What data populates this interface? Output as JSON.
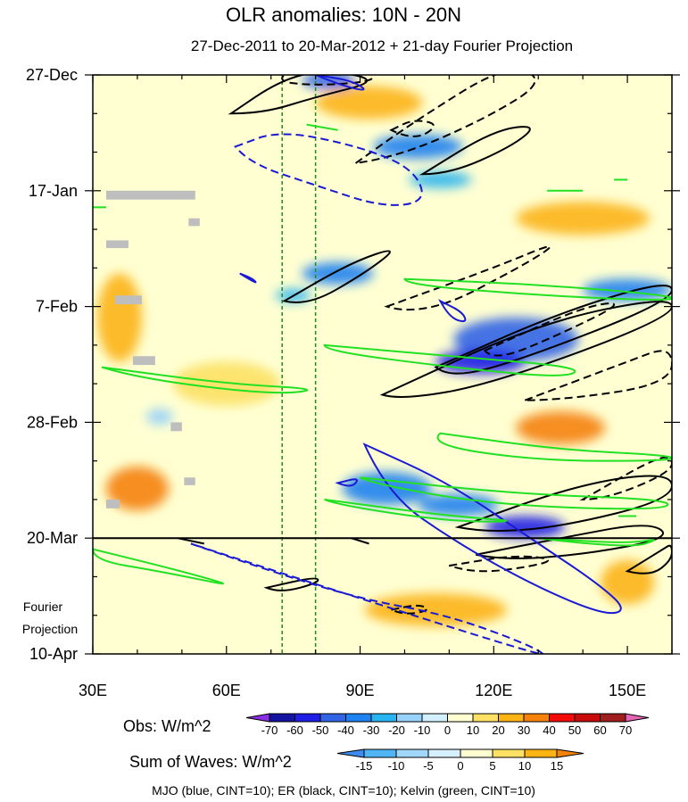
{
  "chart_data": {
    "type": "heatmap",
    "title": "OLR anomalies: 10N - 20N",
    "subtitle": "27-Dec-2011 to 20-Mar-2012 + 21-day Fourier Projection",
    "x_axis": {
      "range": [
        30,
        160
      ],
      "ticks": [
        {
          "value": 30,
          "label": "30E"
        },
        {
          "value": 60,
          "label": "60E"
        },
        {
          "value": 90,
          "label": "90E"
        },
        {
          "value": 120,
          "label": "120E"
        },
        {
          "value": 150,
          "label": "150E"
        }
      ]
    },
    "y_axis": {
      "range_days": [
        0,
        105
      ],
      "ticks": [
        {
          "day": 0,
          "label": "27-Dec"
        },
        {
          "day": 21,
          "label": "17-Jan"
        },
        {
          "day": 42,
          "label": "7-Feb"
        },
        {
          "day": 63,
          "label": "28-Feb"
        },
        {
          "day": 84,
          "label": "20-Mar"
        },
        {
          "day": 105,
          "label": "10-Apr"
        }
      ],
      "projection_start_day": 84,
      "projection_label_line1": "Fourier",
      "projection_label_line2": "Projection"
    },
    "reference_longitudes": [
      72.5,
      80
    ],
    "obs_colorbar": {
      "label": "Obs: W/m^2",
      "levels": [
        "-70",
        "-60",
        "-50",
        "-40",
        "-30",
        "-20",
        "-10",
        "0",
        "10",
        "20",
        "30",
        "40",
        "50",
        "60",
        "70"
      ],
      "colors": [
        "#8c2ee6",
        "#1414a0",
        "#1e1ee6",
        "#3264e6",
        "#1e82f0",
        "#28b4f0",
        "#96d2fa",
        "#d2f0ff",
        "#ffffd2",
        "#fce164",
        "#fcb414",
        "#f5820a",
        "#f50a0a",
        "#c80a0a",
        "#a01e1e",
        "#e664b4"
      ]
    },
    "waves_colorbar": {
      "label": "Sum of Waves: W/m^2",
      "levels": [
        "-15",
        "-10",
        "-5",
        "0",
        "5",
        "10",
        "15"
      ],
      "colors": [
        "#3c8cf0",
        "#50b4f5",
        "#a0d7fa",
        "#d7f0ff",
        "#ffffd2",
        "#fce164",
        "#fcb414",
        "#f5820a"
      ]
    },
    "legend_text": "MJO (blue, CINT=10); ER (black, CINT=10); Kelvin (green, CINT=10)",
    "observed_anomaly_regions": [
      {
        "lon": 83,
        "day": 1,
        "rx": 6,
        "ry": 1.6,
        "value": -50
      },
      {
        "lon": 103,
        "day": 13,
        "rx": 10,
        "ry": 2.2,
        "value": -40
      },
      {
        "lon": 108,
        "day": 19,
        "rx": 7,
        "ry": 1.5,
        "value": -30
      },
      {
        "lon": 85,
        "day": 36,
        "rx": 8,
        "ry": 2,
        "value": -40
      },
      {
        "lon": 75,
        "day": 40,
        "rx": 4,
        "ry": 1.2,
        "value": -30
      },
      {
        "lon": 150,
        "day": 39,
        "rx": 10,
        "ry": 2,
        "value": -40
      },
      {
        "lon": 125,
        "day": 48,
        "rx": 14,
        "ry": 4,
        "value": -50
      },
      {
        "lon": 117,
        "day": 52,
        "rx": 10,
        "ry": 2.2,
        "value": -60
      },
      {
        "lon": 96,
        "day": 75,
        "rx": 10,
        "ry": 3,
        "value": -40
      },
      {
        "lon": 127,
        "day": 82,
        "rx": 9,
        "ry": 2,
        "value": -60
      },
      {
        "lon": 112,
        "day": 78,
        "rx": 9,
        "ry": 2,
        "value": -40
      },
      {
        "lon": 45,
        "day": 62,
        "rx": 3,
        "ry": 1.5,
        "value": -20
      },
      {
        "lon": 107,
        "day": 97,
        "rx": 16,
        "ry": 3,
        "value": 20
      },
      {
        "lon": 40,
        "day": 75,
        "rx": 7,
        "ry": 4,
        "value": 30
      },
      {
        "lon": 36,
        "day": 44,
        "rx": 5,
        "ry": 8,
        "value": 20
      },
      {
        "lon": 60,
        "day": 56,
        "rx": 12,
        "ry": 4,
        "value": 10
      },
      {
        "lon": 92,
        "day": 5,
        "rx": 12,
        "ry": 3,
        "value": 20
      },
      {
        "lon": 135,
        "day": 64,
        "rx": 10,
        "ry": 3,
        "value": 30
      },
      {
        "lon": 140,
        "day": 26,
        "rx": 15,
        "ry": 3,
        "value": 20
      },
      {
        "lon": 150,
        "day": 92,
        "rx": 6,
        "ry": 4,
        "value": 20
      }
    ],
    "missing_data_cells": [
      {
        "lon": 33,
        "day": 21,
        "w": 20,
        "h": 1.6
      },
      {
        "lon": 51.5,
        "day": 26,
        "w": 2.5,
        "h": 1.4
      },
      {
        "lon": 33,
        "day": 30,
        "w": 5,
        "h": 1.4
      },
      {
        "lon": 35,
        "day": 40,
        "w": 6,
        "h": 1.6
      },
      {
        "lon": 39,
        "day": 51,
        "w": 5,
        "h": 1.6
      },
      {
        "lon": 47.5,
        "day": 63,
        "w": 2.5,
        "h": 1.6
      },
      {
        "lon": 50.5,
        "day": 73,
        "w": 2.5,
        "h": 1.4
      },
      {
        "lon": 33,
        "day": 77,
        "w": 3,
        "h": 1.6
      }
    ],
    "wave_contours": [
      {
        "wave": "ER",
        "sign": "positive",
        "points": [
          [
            61,
            7
          ],
          [
            72,
            1
          ],
          [
            82,
            -1
          ],
          [
            95,
            1
          ],
          [
            80,
            4
          ],
          [
            68,
            7
          ]
        ]
      },
      {
        "wave": "ER",
        "sign": "negative",
        "points": [
          [
            75,
            -1
          ],
          [
            90,
            -2
          ],
          [
            95,
            1
          ],
          [
            80,
            2
          ],
          [
            70,
            1
          ]
        ]
      },
      {
        "wave": "ER",
        "sign": "negative",
        "points": [
          [
            89,
            16
          ],
          [
            103,
            8
          ],
          [
            123,
            -2
          ],
          [
            132,
            1
          ],
          [
            118,
            8
          ],
          [
            98,
            15
          ]
        ]
      },
      {
        "wave": "ER",
        "sign": "negative",
        "points": [
          [
            97,
            10
          ],
          [
            102,
            8
          ],
          [
            108,
            9
          ],
          [
            102,
            12
          ]
        ]
      },
      {
        "wave": "ER",
        "sign": "positive",
        "points": [
          [
            104,
            18
          ],
          [
            120,
            10
          ],
          [
            130,
            9
          ],
          [
            124,
            13
          ],
          [
            110,
            18
          ]
        ]
      },
      {
        "wave": "ER",
        "sign": "positive",
        "points": [
          [
            73,
            41
          ],
          [
            88,
            34
          ],
          [
            99,
            31
          ],
          [
            91,
            36
          ],
          [
            78,
            42
          ]
        ]
      },
      {
        "wave": "ER",
        "sign": "negative",
        "points": [
          [
            96,
            42
          ],
          [
            120,
            35
          ],
          [
            135,
            30
          ],
          [
            128,
            34
          ],
          [
            104,
            44
          ]
        ]
      },
      {
        "wave": "ER",
        "sign": "positive",
        "points": [
          [
            107,
            53
          ],
          [
            135,
            43
          ],
          [
            160,
            37
          ],
          [
            160,
            41
          ],
          [
            125,
            52
          ],
          [
            110,
            55
          ]
        ]
      },
      {
        "wave": "ER",
        "sign": "positive",
        "points": [
          [
            95,
            58
          ],
          [
            130,
            45
          ],
          [
            160,
            40
          ],
          [
            160,
            44
          ],
          [
            120,
            56
          ],
          [
            99,
            59
          ]
        ]
      },
      {
        "wave": "ER",
        "sign": "negative",
        "points": [
          [
            127,
            59
          ],
          [
            150,
            52
          ],
          [
            160,
            49
          ],
          [
            160,
            56
          ],
          [
            135,
            59
          ]
        ]
      },
      {
        "wave": "ER",
        "sign": "negative",
        "points": [
          [
            118,
            50
          ],
          [
            140,
            42
          ],
          [
            150,
            41
          ],
          [
            135,
            47
          ],
          [
            120,
            52
          ]
        ]
      },
      {
        "wave": "ER",
        "sign": "positive",
        "points": [
          [
            112,
            82
          ],
          [
            140,
            74
          ],
          [
            160,
            72
          ],
          [
            160,
            77
          ],
          [
            135,
            82
          ],
          [
            118,
            83
          ]
        ]
      },
      {
        "wave": "ER",
        "sign": "negative",
        "points": [
          [
            140,
            77
          ],
          [
            155,
            70
          ],
          [
            160,
            69
          ],
          [
            160,
            72
          ],
          [
            145,
            77
          ]
        ]
      },
      {
        "wave": "ER",
        "sign": "positive",
        "points": [
          [
            116,
            87
          ],
          [
            135,
            84
          ],
          [
            155,
            81
          ],
          [
            160,
            84
          ],
          [
            140,
            87
          ],
          [
            122,
            88
          ]
        ]
      },
      {
        "wave": "ER",
        "sign": "negative",
        "points": [
          [
            110,
            89
          ],
          [
            125,
            87
          ],
          [
            135,
            88
          ],
          [
            122,
            90
          ],
          [
            114,
            90
          ]
        ]
      },
      {
        "wave": "ER",
        "sign": "positive",
        "points": [
          [
            150,
            90
          ],
          [
            158,
            86
          ],
          [
            160,
            85
          ],
          [
            160,
            88
          ],
          [
            155,
            91
          ]
        ]
      },
      {
        "wave": "ER",
        "sign": "positive",
        "points": [
          [
            69,
            93
          ],
          [
            80,
            91
          ],
          [
            81,
            92
          ],
          [
            72,
            94
          ]
        ]
      },
      {
        "wave": "ER",
        "sign": "negative",
        "points": [
          [
            97,
            97
          ],
          [
            103,
            96
          ],
          [
            106,
            97
          ],
          [
            100,
            98
          ]
        ]
      },
      {
        "wave": "ER",
        "sign": "positive",
        "points": [
          [
            49,
            84
          ],
          [
            55,
            85
          ]
        ]
      },
      {
        "wave": "ER",
        "sign": "positive",
        "points": [
          [
            88,
            84
          ],
          [
            92,
            85
          ]
        ]
      },
      {
        "wave": "MJO",
        "sign": "negative",
        "points": [
          [
            62,
            13
          ],
          [
            72,
            10
          ],
          [
            90,
            13
          ],
          [
            102,
            17
          ],
          [
            105,
            23
          ],
          [
            95,
            24
          ],
          [
            80,
            20
          ],
          [
            65,
            16
          ]
        ]
      },
      {
        "wave": "MJO",
        "sign": "positive",
        "points": [
          [
            80,
            0
          ],
          [
            88,
            1
          ],
          [
            92,
            3
          ],
          [
            86,
            2
          ]
        ]
      },
      {
        "wave": "MJO",
        "sign": "positive",
        "points": [
          [
            63,
            36
          ],
          [
            66,
            37
          ],
          [
            67,
            38
          ]
        ]
      },
      {
        "wave": "MJO",
        "sign": "positive",
        "points": [
          [
            108,
            41
          ],
          [
            113,
            43
          ],
          [
            114,
            45
          ],
          [
            110,
            44
          ]
        ]
      },
      {
        "wave": "MJO",
        "sign": "positive",
        "points": [
          [
            91,
            67
          ],
          [
            110,
            74
          ],
          [
            130,
            85
          ],
          [
            143,
            92
          ],
          [
            150,
            97
          ],
          [
            145,
            98
          ],
          [
            130,
            93
          ],
          [
            112,
            85
          ],
          [
            96,
            76
          ]
        ]
      },
      {
        "wave": "MJO",
        "sign": "positive",
        "points": [
          [
            85,
            74
          ],
          [
            90,
            73
          ],
          [
            88,
            75
          ]
        ]
      },
      {
        "wave": "MJO",
        "sign": "negative",
        "points": [
          [
            52,
            85
          ],
          [
            70,
            90
          ],
          [
            90,
            95
          ],
          [
            110,
            98
          ],
          [
            130,
            104
          ],
          [
            132,
            106
          ]
        ]
      },
      {
        "wave": "Kelvin",
        "sign": "positive",
        "points": [
          [
            100,
            37
          ],
          [
            130,
            38
          ],
          [
            160,
            40
          ],
          [
            160,
            41
          ],
          [
            130,
            40
          ],
          [
            100,
            38
          ]
        ]
      },
      {
        "wave": "Kelvin",
        "sign": "positive",
        "points": [
          [
            82,
            49
          ],
          [
            110,
            51
          ],
          [
            140,
            53
          ],
          [
            136,
            55
          ],
          [
            110,
            53
          ],
          [
            82,
            50
          ]
        ]
      },
      {
        "wave": "Kelvin",
        "sign": "positive",
        "points": [
          [
            32,
            53
          ],
          [
            60,
            56
          ],
          [
            82,
            57
          ],
          [
            70,
            58
          ],
          [
            40,
            55
          ]
        ]
      },
      {
        "wave": "Kelvin",
        "sign": "positive",
        "points": [
          [
            108,
            65
          ],
          [
            135,
            68
          ],
          [
            160,
            69
          ],
          [
            160,
            70
          ],
          [
            130,
            70
          ],
          [
            105,
            67
          ]
        ]
      },
      {
        "wave": "Kelvin",
        "sign": "positive",
        "points": [
          [
            90,
            73
          ],
          [
            125,
            76
          ],
          [
            160,
            77
          ],
          [
            158,
            79
          ],
          [
            120,
            78
          ],
          [
            92,
            74
          ]
        ]
      },
      {
        "wave": "Kelvin",
        "sign": "positive",
        "points": [
          [
            82,
            77
          ],
          [
            110,
            80
          ],
          [
            127,
            81
          ],
          [
            110,
            81
          ],
          [
            85,
            78
          ]
        ]
      },
      {
        "wave": "Kelvin",
        "sign": "positive",
        "points": [
          [
            30,
            86
          ],
          [
            50,
            90
          ],
          [
            63,
            93
          ],
          [
            45,
            90
          ],
          [
            30,
            88
          ]
        ]
      },
      {
        "wave": "Kelvin",
        "sign": "positive",
        "points": [
          [
            130,
            84
          ],
          [
            150,
            85
          ],
          [
            158,
            84
          ],
          [
            150,
            86
          ]
        ]
      },
      {
        "wave": "Kelvin",
        "sign": "positive",
        "points": [
          [
            148,
            80
          ],
          [
            152,
            80
          ]
        ]
      },
      {
        "wave": "Kelvin",
        "sign": "positive",
        "points": [
          [
            78,
            9
          ],
          [
            85,
            10
          ]
        ]
      },
      {
        "wave": "Kelvin",
        "sign": "positive",
        "points": [
          [
            132,
            21
          ],
          [
            140,
            21
          ]
        ]
      },
      {
        "wave": "Kelvin",
        "sign": "positive",
        "points": [
          [
            30,
            24
          ],
          [
            33,
            24
          ]
        ]
      },
      {
        "wave": "Kelvin",
        "sign": "positive",
        "points": [
          [
            147,
            19
          ],
          [
            150,
            19
          ]
        ]
      }
    ]
  }
}
